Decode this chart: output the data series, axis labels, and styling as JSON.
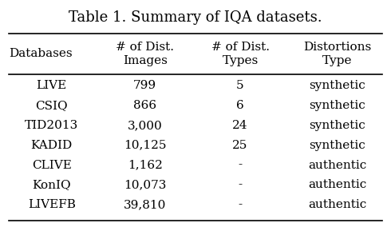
{
  "title": "Table 1. Summary of IQA datasets.",
  "col_headers": [
    "Databases",
    "# of Dist.\nImages",
    "# of Dist.\nTypes",
    "Distortions\nType"
  ],
  "rows": [
    [
      "LIVE",
      "799",
      "5",
      "synthetic"
    ],
    [
      "CSIQ",
      "866",
      "6",
      "synthetic"
    ],
    [
      "TID2013",
      "3,000",
      "24",
      "synthetic"
    ],
    [
      "KADID",
      "10,125",
      "25",
      "synthetic"
    ],
    [
      "CLIVE",
      "1,162",
      "-",
      "authentic"
    ],
    [
      "KonIQ",
      "10,073",
      "-",
      "authentic"
    ],
    [
      "LIVEFB",
      "39,810",
      "-",
      "authentic"
    ]
  ],
  "background_color": "#ffffff",
  "text_color": "#000000",
  "title_fontsize": 13,
  "header_fontsize": 11,
  "row_fontsize": 11,
  "figsize": [
    4.9,
    2.84
  ],
  "dpi": 100
}
